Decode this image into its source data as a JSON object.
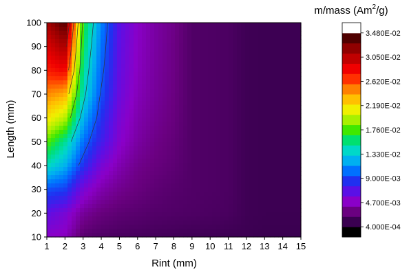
{
  "chart_data": {
    "type": "heatmap",
    "title": "",
    "xlabel": "Rint (mm)",
    "ylabel": "Length (mm)",
    "x": [
      1,
      2,
      3,
      4,
      5,
      6,
      7,
      8,
      9,
      10,
      11,
      12,
      13,
      14,
      15
    ],
    "y": [
      10,
      20,
      30,
      40,
      50,
      60,
      70,
      80,
      90,
      100
    ],
    "xlim": [
      1,
      15
    ],
    "ylim": [
      10,
      100
    ],
    "x_ticks": [
      "1",
      "2",
      "3",
      "4",
      "5",
      "6",
      "7",
      "8",
      "9",
      "10",
      "11",
      "12",
      "13",
      "14",
      "15"
    ],
    "y_ticks": [
      "10",
      "20",
      "30",
      "40",
      "50",
      "60",
      "70",
      "80",
      "90",
      "100"
    ],
    "z_range": [
      0.0004,
      0.0348
    ],
    "z_rows_bottom_to_top": [
      [
        0.0042,
        0.004,
        0.0016,
        0.0012,
        0.001,
        0.0009,
        0.0008,
        0.0007,
        0.0006,
        0.0006,
        0.0005,
        0.0005,
        0.0004,
        0.0004,
        0.0004
      ],
      [
        0.006,
        0.005,
        0.003,
        0.0022,
        0.0018,
        0.0016,
        0.0014,
        0.0013,
        0.0012,
        0.0011,
        0.001,
        0.0006,
        0.0005,
        0.0005,
        0.0005
      ],
      [
        0.009,
        0.0085,
        0.005,
        0.0035,
        0.0027,
        0.0022,
        0.0018,
        0.0015,
        0.0013,
        0.0012,
        0.0011,
        0.0006,
        0.0005,
        0.0005,
        0.0005
      ],
      [
        0.014,
        0.012,
        0.008,
        0.005,
        0.0036,
        0.0026,
        0.0022,
        0.0018,
        0.0013,
        0.0012,
        0.0011,
        0.0006,
        0.0005,
        0.0005,
        0.0005
      ],
      [
        0.018,
        0.015,
        0.01,
        0.007,
        0.0045,
        0.0032,
        0.0025,
        0.002,
        0.0013,
        0.0012,
        0.0011,
        0.0006,
        0.0005,
        0.0005,
        0.0005
      ],
      [
        0.022,
        0.02,
        0.012,
        0.008,
        0.005,
        0.0035,
        0.0028,
        0.0022,
        0.0013,
        0.0012,
        0.0011,
        0.0006,
        0.0005,
        0.0005,
        0.0005
      ],
      [
        0.025,
        0.024,
        0.014,
        0.009,
        0.0055,
        0.0038,
        0.003,
        0.0023,
        0.0013,
        0.0012,
        0.0011,
        0.0006,
        0.0005,
        0.0005,
        0.0005
      ],
      [
        0.028,
        0.029,
        0.015,
        0.0095,
        0.0058,
        0.004,
        0.0031,
        0.0024,
        0.0013,
        0.0012,
        0.0011,
        0.0006,
        0.0005,
        0.0005,
        0.0005
      ],
      [
        0.03,
        0.032,
        0.016,
        0.01,
        0.006,
        0.0041,
        0.0032,
        0.0024,
        0.0013,
        0.0012,
        0.0011,
        0.0006,
        0.0005,
        0.0005,
        0.0005
      ],
      [
        0.032,
        0.0348,
        0.017,
        0.0105,
        0.0062,
        0.0042,
        0.0032,
        0.0025,
        0.0013,
        0.0012,
        0.0011,
        0.0006,
        0.0005,
        0.0005,
        0.0005
      ]
    ],
    "colorbar": {
      "title_main": "m/mass (Am",
      "title_sup": "2",
      "title_end": "/g)",
      "tick_values": [
        0.0348,
        0.0305,
        0.0262,
        0.0219,
        0.0176,
        0.0133,
        0.009,
        0.0047,
        0.0004
      ],
      "tick_labels": [
        "3.480E-02",
        "3.050E-02",
        "2.620E-02",
        "2.190E-02",
        "1.760E-02",
        "1.330E-02",
        "9.000E-03",
        "4.700E-03",
        "4.000E-04"
      ],
      "colors_low_to_high": [
        "#000000",
        "#3a0050",
        "#6a0080",
        "#8a00c8",
        "#5a10e6",
        "#2030f0",
        "#0070ff",
        "#00b0f0",
        "#00d8c8",
        "#00e070",
        "#40e800",
        "#a8f000",
        "#f0f000",
        "#ffc000",
        "#ff8000",
        "#ff3000",
        "#f00000",
        "#c00000",
        "#900000",
        "#500000",
        "#ffffff"
      ]
    },
    "legend": "colorbar right",
    "grid": false
  }
}
